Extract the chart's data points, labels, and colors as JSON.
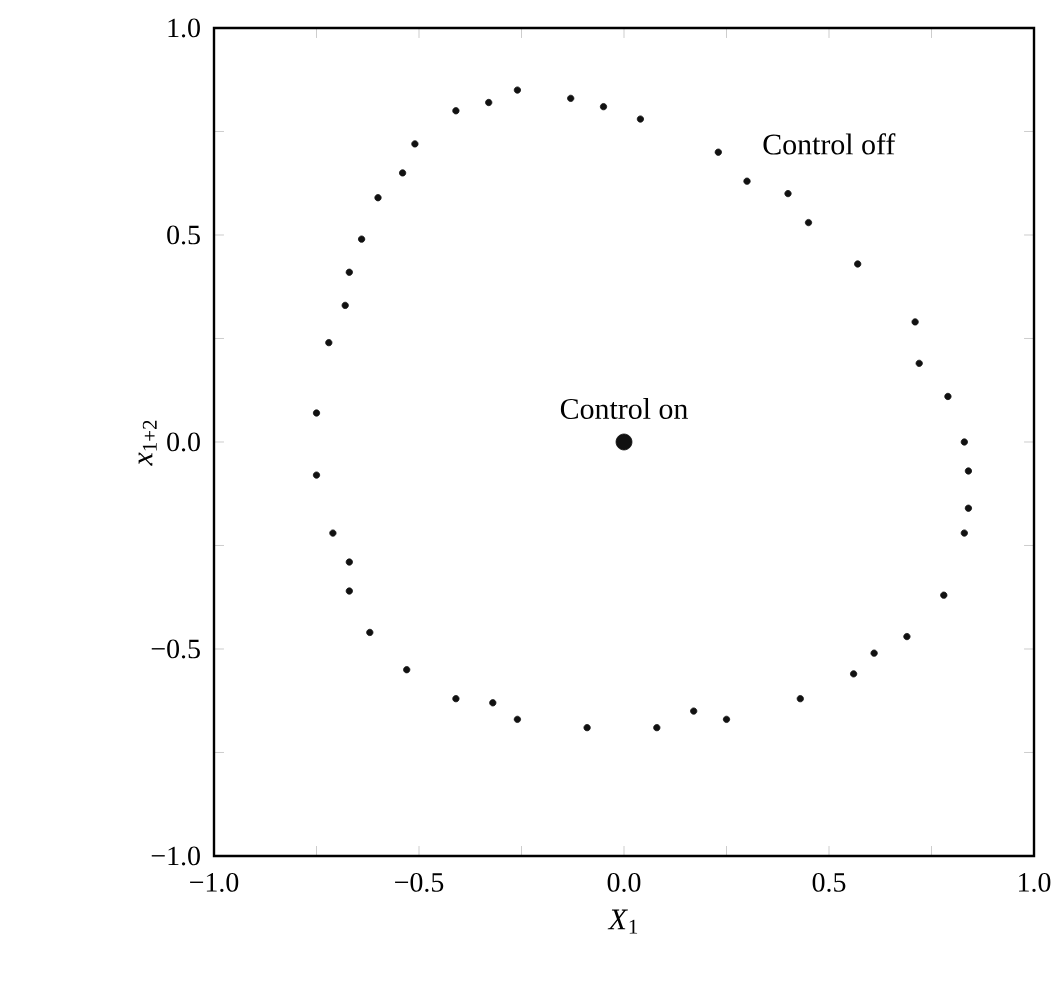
{
  "chart_data": {
    "type": "scatter",
    "xlabel": "*X*$_{1}$",
    "ylabel": "*x*$_{1+2}$",
    "xlim": [
      -1.0,
      1.0
    ],
    "ylim": [
      -1.0,
      1.0
    ],
    "xticks": [
      {
        "value": -1.0,
        "label": "−1.0"
      },
      {
        "value": -0.75,
        "label": null
      },
      {
        "value": -0.5,
        "label": "−0.5"
      },
      {
        "value": -0.25,
        "label": null
      },
      {
        "value": 0.0,
        "label": "0.0"
      },
      {
        "value": 0.25,
        "label": null
      },
      {
        "value": 0.5,
        "label": "0.5"
      },
      {
        "value": 0.75,
        "label": null
      },
      {
        "value": 1.0,
        "label": "1.0"
      }
    ],
    "yticks": [
      {
        "value": -1.0,
        "label": "−1.0"
      },
      {
        "value": -0.75,
        "label": null
      },
      {
        "value": -0.5,
        "label": "−0.5"
      },
      {
        "value": -0.25,
        "label": null
      },
      {
        "value": 0.0,
        "label": "0.0"
      },
      {
        "value": 0.25,
        "label": null
      },
      {
        "value": 0.5,
        "label": "0.5"
      },
      {
        "value": 0.75,
        "label": null
      },
      {
        "value": 1.0,
        "label": "1.0"
      }
    ],
    "marker": "circle",
    "grid": false,
    "legend": false,
    "series": [
      {
        "name": "Control off",
        "color": "#111111",
        "x": [
          -0.41,
          -0.33,
          -0.26,
          -0.13,
          -0.05,
          0.04,
          0.23,
          0.3,
          0.4,
          0.45,
          0.57,
          0.71,
          0.72,
          0.79,
          0.83,
          0.84,
          0.84,
          0.83,
          0.78,
          0.69,
          0.61,
          0.56,
          0.43,
          0.25,
          0.17,
          0.08,
          -0.09,
          -0.26,
          -0.32,
          -0.41,
          -0.53,
          -0.62,
          -0.67,
          -0.67,
          -0.71,
          -0.75,
          -0.75,
          -0.72,
          -0.68,
          -0.67,
          -0.64,
          -0.6,
          -0.54,
          -0.51
        ],
        "values": [
          0.8,
          0.82,
          0.85,
          0.83,
          0.81,
          0.78,
          0.7,
          0.63,
          0.6,
          0.53,
          0.43,
          0.29,
          0.19,
          0.11,
          0.0,
          -0.07,
          -0.16,
          -0.22,
          -0.37,
          -0.47,
          -0.51,
          -0.56,
          -0.62,
          -0.67,
          -0.65,
          -0.69,
          -0.69,
          -0.67,
          -0.63,
          -0.62,
          -0.55,
          -0.46,
          -0.36,
          -0.29,
          -0.22,
          -0.08,
          0.07,
          0.24,
          0.33,
          0.41,
          0.49,
          0.59,
          0.65,
          0.72
        ]
      },
      {
        "name": "Control on",
        "color": "#111111",
        "x": [
          0.0
        ],
        "values": [
          0.0
        ]
      }
    ]
  }
}
